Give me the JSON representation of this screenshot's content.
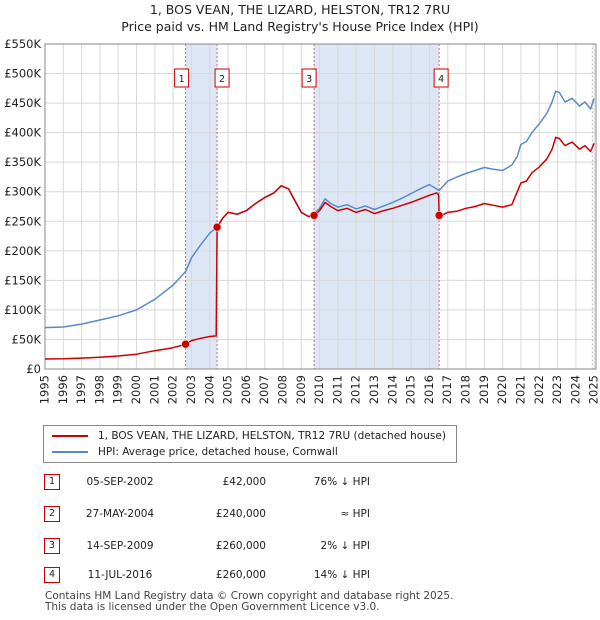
{
  "title_line1": "1, BOS VEAN, THE LIZARD, HELSTON, TR12 7RU",
  "title_line2": "Price paid vs. HM Land Registry's House Price Index (HPI)",
  "chart_data": {
    "type": "line",
    "title": "1, BOS VEAN, THE LIZARD, HELSTON, TR12 7RU — Price paid vs. HM Land Registry's House Price Index (HPI)",
    "xlim": [
      1995,
      2025.1
    ],
    "ylim": [
      0,
      550000
    ],
    "x_ticks": [
      1995,
      1996,
      1997,
      1998,
      1999,
      2000,
      2001,
      2002,
      2003,
      2004,
      2005,
      2006,
      2007,
      2008,
      2009,
      2010,
      2011,
      2012,
      2013,
      2014,
      2015,
      2016,
      2017,
      2018,
      2019,
      2020,
      2021,
      2022,
      2023,
      2024,
      2025
    ],
    "y_ticks": [
      0,
      50000,
      100000,
      150000,
      200000,
      250000,
      300000,
      350000,
      400000,
      450000,
      500000,
      550000
    ],
    "y_tick_labels": [
      "£0",
      "£50K",
      "£100K",
      "£150K",
      "£200K",
      "£250K",
      "£300K",
      "£350K",
      "£400K",
      "£450K",
      "£500K",
      "£550K"
    ],
    "grid": true,
    "colors": {
      "property": "#cc0000",
      "hpi": "#5b8ac6",
      "shade": "#dde6f5",
      "marker_line": "#e06666"
    },
    "shaded_periods": [
      [
        2002.68,
        2004.4
      ],
      [
        2009.7,
        2016.53
      ]
    ],
    "series": [
      {
        "name": "1, BOS VEAN, THE LIZARD, HELSTON, TR12 7RU (detached house)",
        "points": [
          [
            1995.0,
            17000
          ],
          [
            1996.0,
            17200
          ],
          [
            1997.0,
            18500
          ],
          [
            1998.0,
            20000
          ],
          [
            1999.0,
            22000
          ],
          [
            2000.0,
            25000
          ],
          [
            2001.0,
            31000
          ],
          [
            2002.0,
            36000
          ],
          [
            2002.68,
            42000
          ],
          [
            2003.0,
            48000
          ],
          [
            2003.5,
            52000
          ],
          [
            2004.0,
            55000
          ],
          [
            2004.35,
            56000
          ],
          [
            2004.4,
            240000
          ],
          [
            2004.7,
            255000
          ],
          [
            2005.0,
            265000
          ],
          [
            2005.5,
            262000
          ],
          [
            2006.0,
            268000
          ],
          [
            2006.5,
            280000
          ],
          [
            2007.0,
            290000
          ],
          [
            2007.5,
            298000
          ],
          [
            2007.9,
            310000
          ],
          [
            2008.3,
            305000
          ],
          [
            2008.7,
            282000
          ],
          [
            2009.0,
            265000
          ],
          [
            2009.4,
            258000
          ],
          [
            2009.7,
            260000
          ],
          [
            2010.0,
            268000
          ],
          [
            2010.3,
            282000
          ],
          [
            2010.6,
            275000
          ],
          [
            2011.0,
            268000
          ],
          [
            2011.5,
            272000
          ],
          [
            2012.0,
            265000
          ],
          [
            2012.5,
            270000
          ],
          [
            2013.0,
            263000
          ],
          [
            2013.5,
            268000
          ],
          [
            2014.0,
            272000
          ],
          [
            2014.5,
            277000
          ],
          [
            2015.0,
            282000
          ],
          [
            2015.5,
            288000
          ],
          [
            2016.0,
            294000
          ],
          [
            2016.4,
            298000
          ],
          [
            2016.5,
            295000
          ],
          [
            2016.53,
            260000
          ],
          [
            2016.8,
            262000
          ],
          [
            2017.0,
            265000
          ],
          [
            2017.5,
            267000
          ],
          [
            2018.0,
            272000
          ],
          [
            2018.5,
            275000
          ],
          [
            2019.0,
            280000
          ],
          [
            2019.5,
            277000
          ],
          [
            2020.0,
            274000
          ],
          [
            2020.5,
            278000
          ],
          [
            2020.8,
            300000
          ],
          [
            2021.0,
            315000
          ],
          [
            2021.3,
            318000
          ],
          [
            2021.6,
            332000
          ],
          [
            2022.0,
            342000
          ],
          [
            2022.4,
            355000
          ],
          [
            2022.7,
            372000
          ],
          [
            2022.9,
            392000
          ],
          [
            2023.1,
            390000
          ],
          [
            2023.4,
            378000
          ],
          [
            2023.8,
            384000
          ],
          [
            2024.2,
            372000
          ],
          [
            2024.5,
            378000
          ],
          [
            2024.8,
            368000
          ],
          [
            2025.0,
            382000
          ]
        ]
      },
      {
        "name": "HPI: Average price, detached house, Cornwall",
        "points": [
          [
            1995.0,
            70000
          ],
          [
            1996.0,
            71000
          ],
          [
            1997.0,
            76000
          ],
          [
            1998.0,
            83000
          ],
          [
            1999.0,
            90000
          ],
          [
            2000.0,
            100000
          ],
          [
            2001.0,
            118000
          ],
          [
            2002.0,
            142000
          ],
          [
            2002.68,
            165000
          ],
          [
            2003.0,
            188000
          ],
          [
            2003.5,
            210000
          ],
          [
            2004.0,
            230000
          ],
          [
            2004.4,
            240000
          ],
          [
            2004.7,
            255000
          ],
          [
            2005.0,
            265000
          ],
          [
            2005.5,
            262000
          ],
          [
            2006.0,
            268000
          ],
          [
            2006.5,
            280000
          ],
          [
            2007.0,
            290000
          ],
          [
            2007.5,
            298000
          ],
          [
            2007.9,
            310000
          ],
          [
            2008.3,
            305000
          ],
          [
            2008.7,
            282000
          ],
          [
            2009.0,
            265000
          ],
          [
            2009.4,
            258000
          ],
          [
            2009.7,
            263000
          ],
          [
            2010.0,
            272000
          ],
          [
            2010.3,
            288000
          ],
          [
            2010.6,
            280000
          ],
          [
            2011.0,
            274000
          ],
          [
            2011.5,
            278000
          ],
          [
            2012.0,
            271000
          ],
          [
            2012.5,
            276000
          ],
          [
            2013.0,
            270000
          ],
          [
            2013.5,
            276000
          ],
          [
            2014.0,
            282000
          ],
          [
            2014.5,
            289000
          ],
          [
            2015.0,
            297000
          ],
          [
            2015.5,
            305000
          ],
          [
            2016.0,
            312000
          ],
          [
            2016.53,
            302000
          ],
          [
            2017.0,
            318000
          ],
          [
            2017.5,
            325000
          ],
          [
            2018.0,
            331000
          ],
          [
            2018.5,
            336000
          ],
          [
            2019.0,
            341000
          ],
          [
            2019.5,
            338000
          ],
          [
            2020.0,
            336000
          ],
          [
            2020.5,
            345000
          ],
          [
            2020.8,
            360000
          ],
          [
            2021.0,
            380000
          ],
          [
            2021.3,
            385000
          ],
          [
            2021.6,
            400000
          ],
          [
            2022.0,
            415000
          ],
          [
            2022.4,
            432000
          ],
          [
            2022.7,
            452000
          ],
          [
            2022.9,
            470000
          ],
          [
            2023.1,
            468000
          ],
          [
            2023.4,
            452000
          ],
          [
            2023.8,
            458000
          ],
          [
            2024.2,
            445000
          ],
          [
            2024.5,
            452000
          ],
          [
            2024.8,
            440000
          ],
          [
            2025.0,
            458000
          ]
        ]
      }
    ],
    "sales": [
      {
        "label": "1",
        "x": 2002.68,
        "price": 42000
      },
      {
        "label": "2",
        "x": 2004.4,
        "price": 240000
      },
      {
        "label": "3",
        "x": 2009.7,
        "price": 260000
      },
      {
        "label": "4",
        "x": 2016.53,
        "price": 260000
      }
    ],
    "legend": [
      "1, BOS VEAN, THE LIZARD, HELSTON, TR12 7RU (detached house)",
      "HPI: Average price, detached house, Cornwall"
    ]
  },
  "sales_table": [
    {
      "num": "1",
      "date": "05-SEP-2002",
      "price": "£42,000",
      "hpi": "76% ↓ HPI"
    },
    {
      "num": "2",
      "date": "27-MAY-2004",
      "price": "£240,000",
      "hpi": "≈ HPI"
    },
    {
      "num": "3",
      "date": "14-SEP-2009",
      "price": "£260,000",
      "hpi": "2% ↓ HPI"
    },
    {
      "num": "4",
      "date": "11-JUL-2016",
      "price": "£260,000",
      "hpi": "14% ↓ HPI"
    }
  ],
  "footer_line1": "Contains HM Land Registry data © Crown copyright and database right 2025.",
  "footer_line2": "This data is licensed under the Open Government Licence v3.0."
}
